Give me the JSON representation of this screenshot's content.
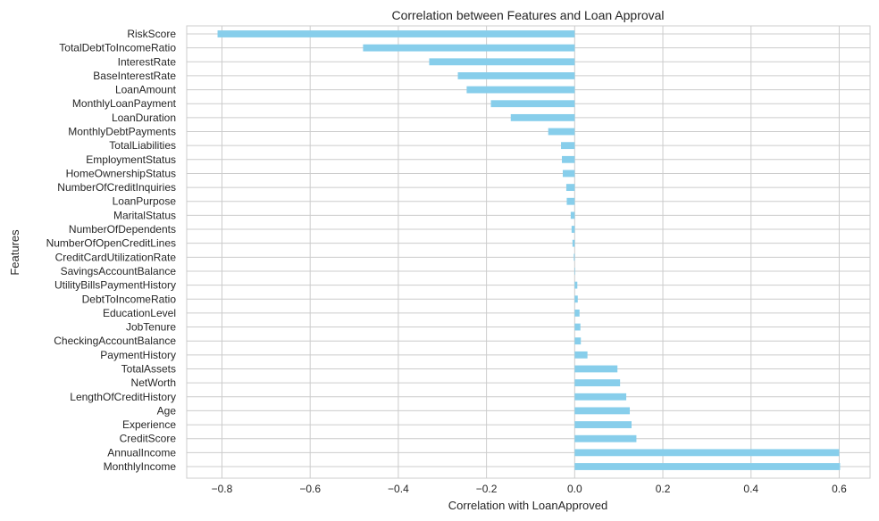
{
  "chart_data": {
    "type": "bar",
    "orientation": "horizontal",
    "title": "Correlation between Features and Loan Approval",
    "xlabel": "Correlation with LoanApproved",
    "ylabel": "Features",
    "xlim": [
      -0.88,
      0.67
    ],
    "xticks": [
      -0.8,
      -0.6,
      -0.4,
      -0.2,
      0.0,
      0.2,
      0.4,
      0.6
    ],
    "xtick_labels": [
      "−0.8",
      "−0.6",
      "−0.4",
      "−0.2",
      "0.0",
      "0.2",
      "0.4",
      "0.6"
    ],
    "grid": true,
    "bar_color": "#87ceeb",
    "categories": [
      "RiskScore",
      "TotalDebtToIncomeRatio",
      "InterestRate",
      "BaseInterestRate",
      "LoanAmount",
      "MonthlyLoanPayment",
      "LoanDuration",
      "MonthlyDebtPayments",
      "TotalLiabilities",
      "EmploymentStatus",
      "HomeOwnershipStatus",
      "NumberOfCreditInquiries",
      "LoanPurpose",
      "MaritalStatus",
      "NumberOfDependents",
      "NumberOfOpenCreditLines",
      "CreditCardUtilizationRate",
      "SavingsAccountBalance",
      "UtilityBillsPaymentHistory",
      "DebtToIncomeRatio",
      "EducationLevel",
      "JobTenure",
      "CheckingAccountBalance",
      "PaymentHistory",
      "TotalAssets",
      "NetWorth",
      "LengthOfCreditHistory",
      "Age",
      "Experience",
      "CreditScore",
      "AnnualIncome",
      "MonthlyIncome"
    ],
    "values": [
      -0.81,
      -0.48,
      -0.33,
      -0.265,
      -0.245,
      -0.19,
      -0.145,
      -0.06,
      -0.031,
      -0.029,
      -0.027,
      -0.019,
      -0.018,
      -0.009,
      -0.007,
      -0.005,
      -0.002,
      0.001,
      0.006,
      0.007,
      0.011,
      0.013,
      0.014,
      0.029,
      0.097,
      0.103,
      0.117,
      0.125,
      0.129,
      0.14,
      0.6,
      0.602
    ]
  }
}
